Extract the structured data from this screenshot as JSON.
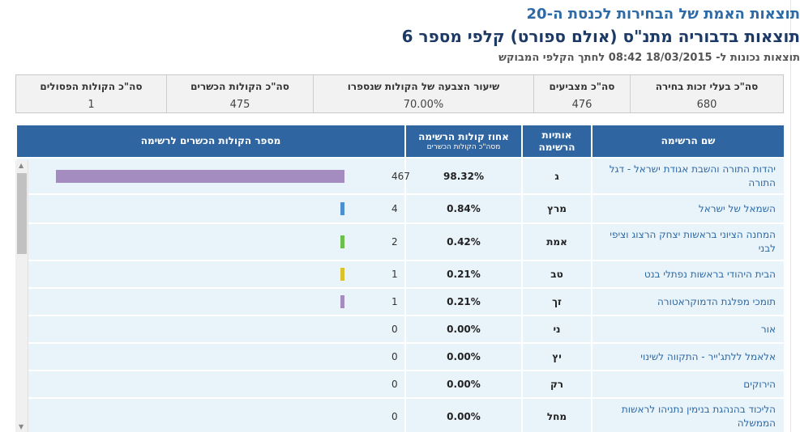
{
  "header": {
    "title": "תוצאות האמת של הבחירות לכנסת ה-20",
    "subtitle": "תוצאות בדבוריה מתנ\"ס (אולם ספורט) קלפי מספר 6",
    "updated": "תוצאות נכונות ל- 18/03/2015 08:42 לחתך הקלפי המבוקש"
  },
  "summary": [
    {
      "label": "סה\"כ בעלי זכות בחירה",
      "value": "680"
    },
    {
      "label": "סה\"כ מצביעים",
      "value": "476"
    },
    {
      "label": "שיעור הצבעה של הקולות שנספרו",
      "value": "70.00%"
    },
    {
      "label": "סה\"כ הקולות הכשרים",
      "value": "475"
    },
    {
      "label": "סה\"כ הקולות הפסולים",
      "value": "1"
    }
  ],
  "table_headers": {
    "name": "שם הרשימה",
    "letters_line1": "אותיות",
    "letters_line2": "הרשימה",
    "pct_line1": "אחוז קולות הרשימה",
    "pct_line2": "מסה\"כ הקולות הכשרים",
    "votes": "מספר הקולות הכשרים לרשימה"
  },
  "rows": [
    {
      "name": "יהדות התורה והשבת אגודת ישראל - דגל התורה",
      "letters": "ג",
      "pct": "98.32%",
      "votes": "467",
      "share": 0.9832,
      "color": "#a48cc0"
    },
    {
      "name": "השמאל של ישראל",
      "letters": "מרץ",
      "pct": "0.84%",
      "votes": "4",
      "share": 0.0084,
      "color": "#4d90d0"
    },
    {
      "name": "המחנה הציוני בראשות יצחק הרצוג וציפי לבני",
      "letters": "אמת",
      "pct": "0.42%",
      "votes": "2",
      "share": 0.0042,
      "color": "#6cbf4a"
    },
    {
      "name": "הבית היהודי בראשות נפתלי בנט",
      "letters": "טב",
      "pct": "0.21%",
      "votes": "1",
      "share": 0.0021,
      "color": "#d9c22e"
    },
    {
      "name": "תומכי מפלגת הדמוקראטורה",
      "letters": "זך",
      "pct": "0.21%",
      "votes": "1",
      "share": 0.0021,
      "color": "#a48cc0"
    },
    {
      "name": "אור",
      "letters": "ני",
      "pct": "0.00%",
      "votes": "0",
      "share": 0,
      "color": "#a48cc0"
    },
    {
      "name": "אלאמל ללתג'ייר - התקווה לשינוי",
      "letters": "יץ",
      "pct": "0.00%",
      "votes": "0",
      "share": 0,
      "color": "#a48cc0"
    },
    {
      "name": "הירוקים",
      "letters": "רק",
      "pct": "0.00%",
      "votes": "0",
      "share": 0,
      "color": "#a48cc0"
    },
    {
      "name": "הליכוד בהנהגת בנימין נתניהו לראשות הממשלה",
      "letters": "מחל",
      "pct": "0.00%",
      "votes": "0",
      "share": 0,
      "color": "#a48cc0"
    }
  ],
  "scrollbar": {
    "up": "▲",
    "down": "▼"
  }
}
